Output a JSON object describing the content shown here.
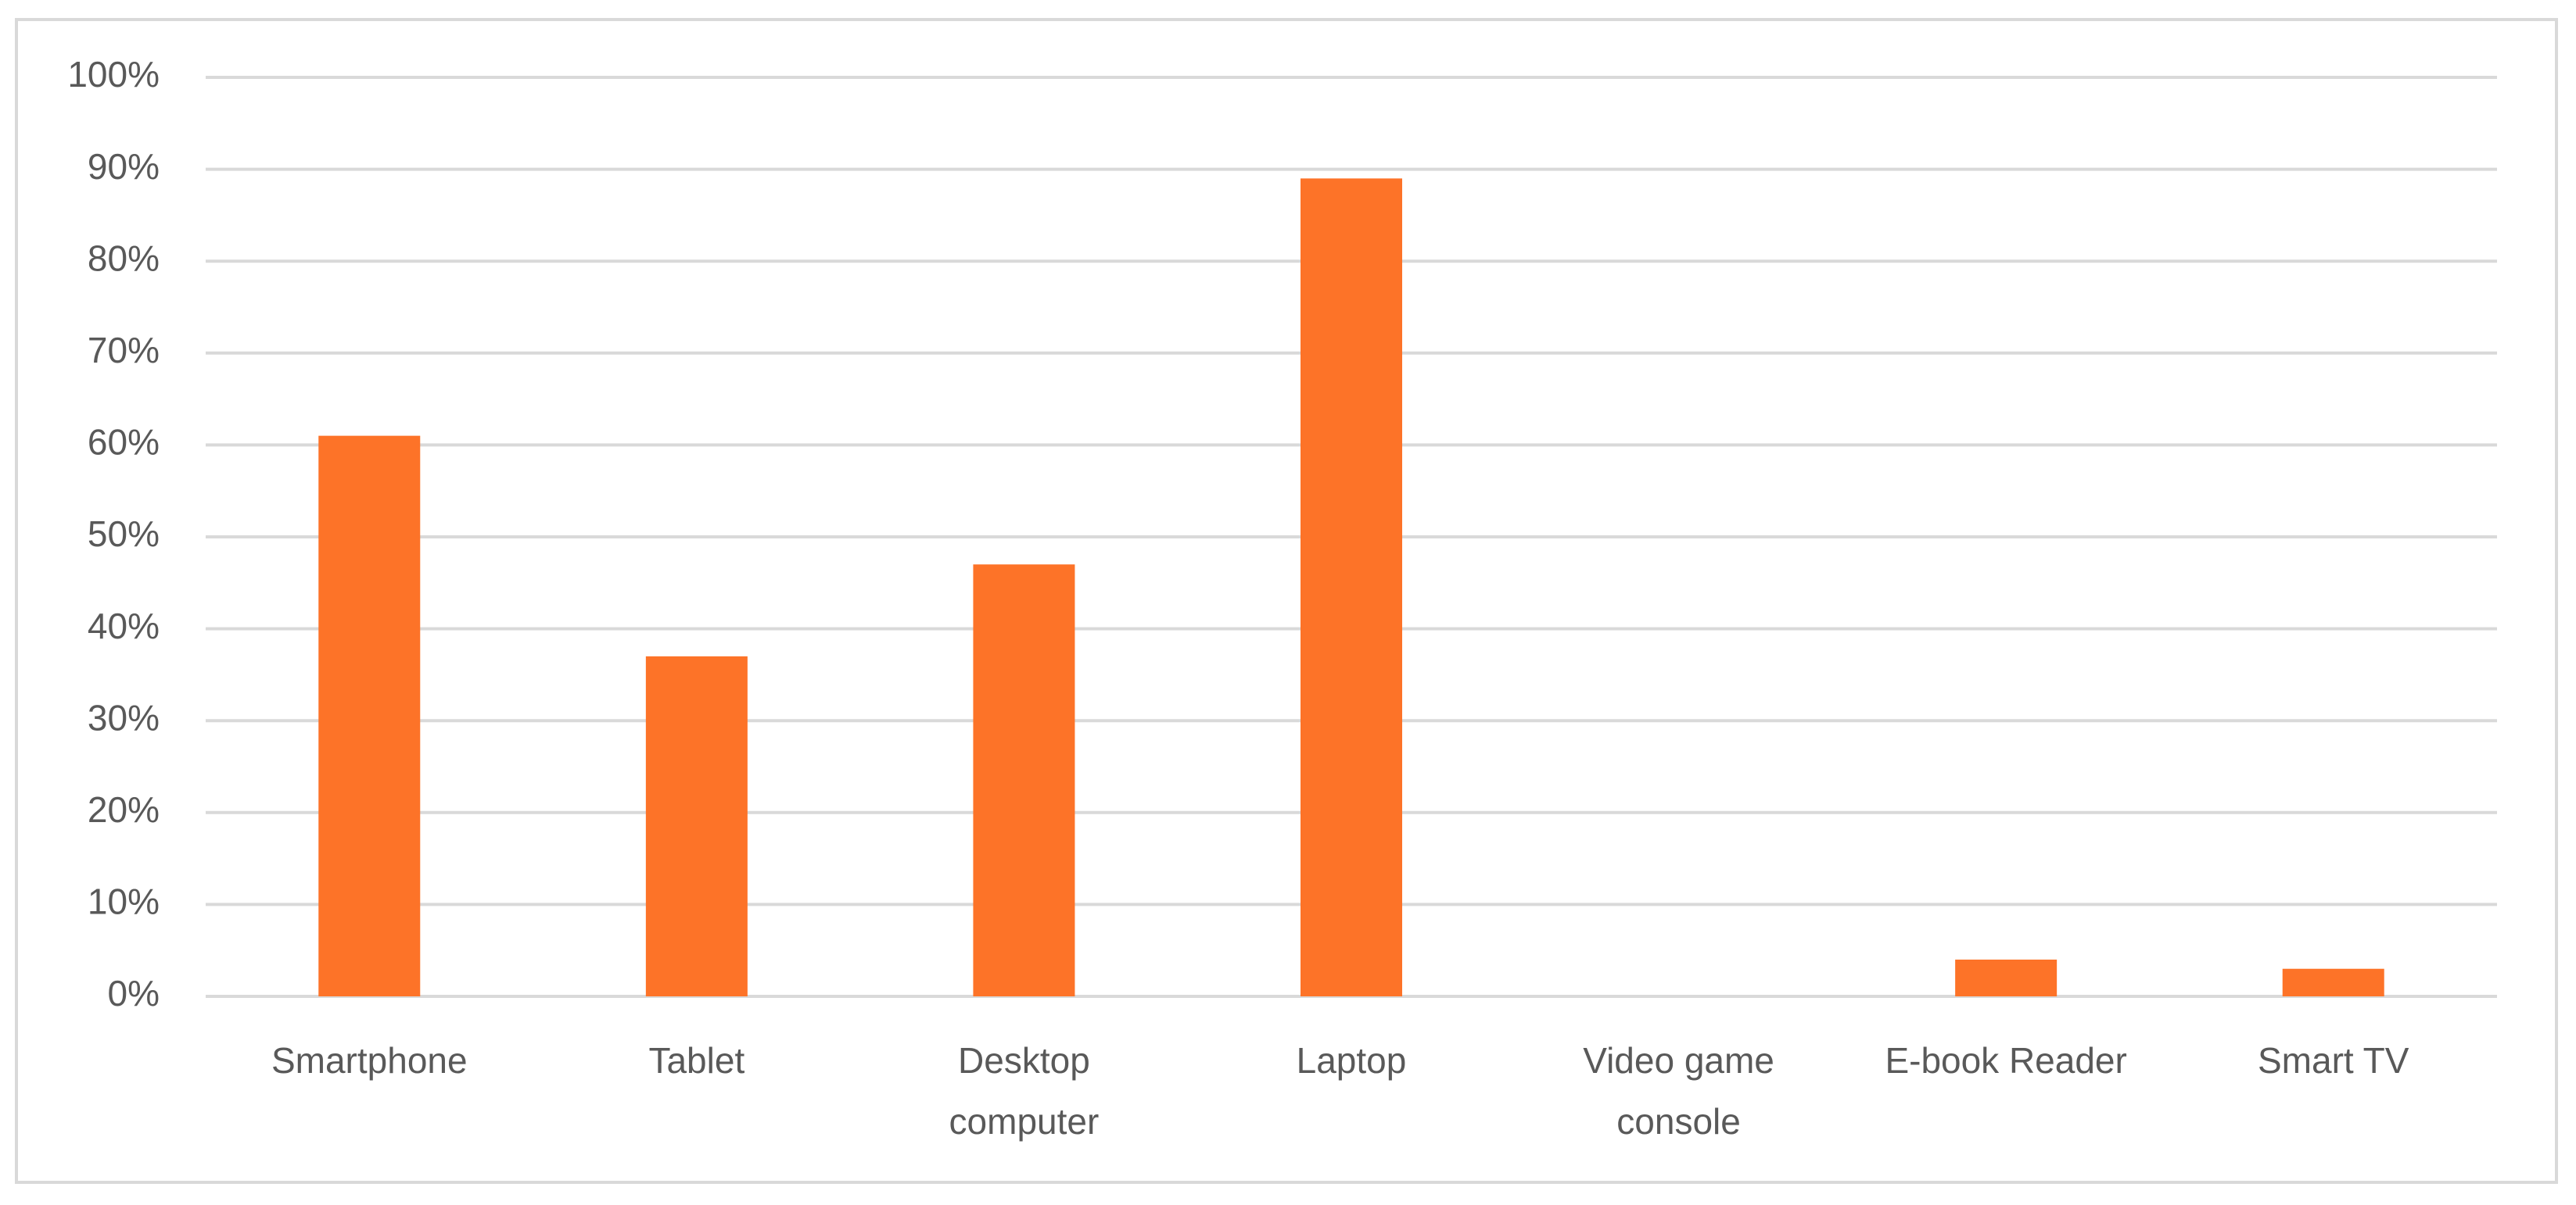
{
  "chart_data": {
    "type": "bar",
    "categories": [
      "Smartphone",
      "Tablet",
      "Desktop computer",
      "Laptop",
      "Video game console",
      "E-book Reader",
      "Smart TV"
    ],
    "values": [
      61,
      37,
      47,
      89,
      0,
      4,
      3
    ],
    "color": "#fd7328",
    "ylim": [
      0,
      100
    ],
    "yticks": [
      {
        "value": 0,
        "label": "0%"
      },
      {
        "value": 10,
        "label": "10%"
      },
      {
        "value": 20,
        "label": "20%"
      },
      {
        "value": 30,
        "label": "30%"
      },
      {
        "value": 40,
        "label": "40%"
      },
      {
        "value": 50,
        "label": "50%"
      },
      {
        "value": 60,
        "label": "60%"
      },
      {
        "value": 70,
        "label": "70%"
      },
      {
        "value": 80,
        "label": "80%"
      },
      {
        "value": 90,
        "label": "90%"
      },
      {
        "value": 100,
        "label": "100%"
      }
    ],
    "grid": true
  }
}
